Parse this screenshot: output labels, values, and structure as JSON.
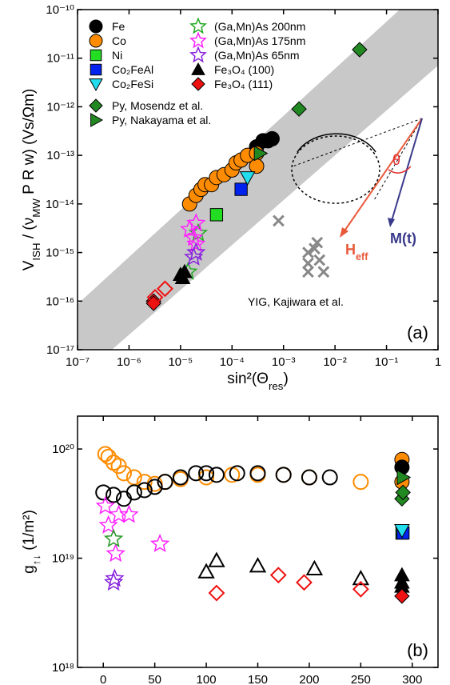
{
  "chart_data": [
    {
      "type": "scatter",
      "panel_label": "(a)",
      "annotation": "YIG, Kajiwara et al.",
      "xlabel": [
        {
          "text": "sin²(Θ"
        },
        {
          "text": "res",
          "sub": true
        },
        {
          "text": ")"
        }
      ],
      "ylabel": [
        {
          "text": "V"
        },
        {
          "text": "ISH",
          "sub": true
        },
        {
          "text": " / (ν"
        },
        {
          "text": "MW",
          "sub": true
        },
        {
          "text": " P R w) (Vs/Ωm)"
        }
      ],
      "xlog": true,
      "ylog": true,
      "legend": "upper left",
      "xlim": [
        1e-07,
        1
      ],
      "ylim": [
        1e-17,
        1e-10
      ],
      "xticks": [
        {
          "value": 1e-07,
          "label": "10⁻⁷"
        },
        {
          "value": 1e-06,
          "label": "10⁻⁶"
        },
        {
          "value": 1e-05,
          "label": "10⁻⁵"
        },
        {
          "value": 0.0001,
          "label": "10⁻⁴"
        },
        {
          "value": 0.001,
          "label": "10⁻³"
        },
        {
          "value": 0.01,
          "label": "10⁻²"
        },
        {
          "value": 0.1,
          "label": "10⁻¹"
        },
        {
          "value": 1,
          "label": "1"
        }
      ],
      "yticks": [
        {
          "value": 1e-17,
          "label": "10⁻¹⁷"
        },
        {
          "value": 1e-16,
          "label": "10⁻¹⁶"
        },
        {
          "value": 1e-15,
          "label": "10⁻¹⁵"
        },
        {
          "value": 1e-14,
          "label": "10⁻¹⁴"
        },
        {
          "value": 1e-13,
          "label": "10⁻¹³"
        },
        {
          "value": 1e-12,
          "label": "10⁻¹²"
        },
        {
          "value": 1e-11,
          "label": "10⁻¹¹"
        },
        {
          "value": 1e-10,
          "label": "10⁻¹⁰"
        }
      ],
      "inset": {
        "theta": "θ",
        "h_label": [
          {
            "text": "H"
          },
          {
            "text": "eff",
            "sub": true
          }
        ],
        "m_label": [
          {
            "text": "M"
          },
          {
            "text": "(t)"
          }
        ]
      },
      "series": [
        {
          "name": "Fe",
          "color": "#000000",
          "marker": "circle",
          "filled": true,
          "x": [
            0.0003,
            0.0004,
            0.0005,
            0.0006
          ],
          "values": [
            1.5e-13,
            2e-13,
            2e-13,
            2.2e-13
          ]
        },
        {
          "name": "Co",
          "color": "#ff8c00",
          "marker": "circle",
          "filled": true,
          "x": [
            1.5e-05,
            2e-05,
            2.5e-05,
            3e-05,
            4e-05,
            5e-05,
            7e-05,
            0.0001,
            0.00012,
            0.00015,
            0.0002,
            0.0003,
            0.0003
          ],
          "values": [
            1e-14,
            1.5e-14,
            2e-14,
            2.5e-14,
            2.5e-14,
            3.5e-14,
            4e-14,
            5e-14,
            7e-14,
            8e-14,
            1e-13,
            1.1e-13,
            6e-14
          ]
        },
        {
          "name": "Ni",
          "color": "#22dd22",
          "marker": "square",
          "filled": true,
          "x": [
            5e-05
          ],
          "values": [
            6e-15
          ]
        },
        {
          "name": "Co₂FeAl",
          "color": "#0022ee",
          "marker": "square",
          "filled": true,
          "x": [
            0.00015
          ],
          "values": [
            2e-14
          ]
        },
        {
          "name": "Co₂FeSi",
          "color": "#22ddee",
          "marker": "triangle-down",
          "filled": true,
          "x": [
            0.0002
          ],
          "values": [
            3.5e-14
          ]
        },
        {
          "name": "(Ga,Mn)As 200nm",
          "color": "#22aa22",
          "marker": "star",
          "filled": false,
          "x": [
            2.2e-05,
            1.4e-05
          ],
          "values": [
            2.5e-15,
            4e-16
          ]
        },
        {
          "name": "(Ga,Mn)As 175nm",
          "color": "#ff22ff",
          "marker": "star",
          "filled": false,
          "x": [
            1.5e-05,
            2e-05,
            1.8e-05,
            2e-05
          ],
          "values": [
            3e-15,
            4e-15,
            2e-15,
            1.5e-15
          ]
        },
        {
          "name": "(Ga,Mn)As 65nm",
          "color": "#8822dd",
          "marker": "star",
          "filled": false,
          "x": [
            2e-05,
            1.8e-05
          ],
          "values": [
            1e-15,
            8e-16
          ]
        },
        {
          "name": "Fe₃O₄ (100)",
          "color": "#000000",
          "marker": "triangle",
          "filled": true,
          "x": [
            1e-05,
            1.2e-05,
            1.1e-05
          ],
          "values": [
            3.5e-16,
            4e-16,
            3e-16
          ]
        },
        {
          "name": "Fe₃O₄ (111)",
          "color": "#ee1111",
          "marker": "diamond",
          "filled": true,
          "x": [
            3e-06,
            3e-06
          ],
          "values": [
            1e-16,
            9e-17
          ]
        },
        {
          "name": "Py, Mosendz et al.",
          "color": "#228822",
          "marker": "diamond",
          "filled": true,
          "x": [
            0.03,
            0.002
          ],
          "values": [
            1.5e-11,
            9e-13
          ]
        },
        {
          "name": "Py, Nakayama et al.",
          "color": "#228822",
          "marker": "triangle-right",
          "filled": true,
          "x": [
            0.00035
          ],
          "values": [
            1.1e-13
          ]
        },
        {
          "color": "#ee1111",
          "marker": "diamond",
          "filled": false,
          "x": [
            3.2e-06,
            5e-06
          ],
          "values": [
            1.2e-16,
            1.8e-16
          ]
        },
        {
          "color": "#888888",
          "marker": "cross",
          "filled": false,
          "x": [
            0.0008,
            0.003,
            0.0045,
            0.003,
            0.005,
            0.003,
            0.006,
            0.004
          ],
          "values": [
            4.5e-15,
            1e-15,
            1.6e-15,
            6e-16,
            7e-16,
            4e-16,
            4e-16,
            1.2e-15
          ]
        }
      ]
    },
    {
      "type": "scatter",
      "panel_label": "(b)",
      "xlabel": [
        {
          "text": "T (K)"
        }
      ],
      "ylabel": [
        {
          "text": "g"
        },
        {
          "text": "↑↓",
          "sub": true
        },
        {
          "text": " (1/m²)"
        }
      ],
      "xlog": false,
      "ylog": true,
      "xlim": [
        -25,
        325
      ],
      "ylim": [
        1e+18,
        2e+20
      ],
      "xticks": [
        0,
        50,
        100,
        150,
        200,
        250,
        300
      ],
      "yticks": [
        {
          "value": 1e+18,
          "label": "10¹⁸"
        },
        {
          "value": 1e+19,
          "label": "10¹⁹"
        },
        {
          "value": 1e+20,
          "label": "10²⁰"
        }
      ],
      "series": [
        {
          "color": "#ff8c00",
          "marker": "circle",
          "filled": false,
          "x": [
            2,
            5,
            10,
            15,
            20,
            30,
            40,
            50,
            60,
            75,
            100,
            125,
            150,
            175,
            200,
            250
          ],
          "values": [
            9e+19,
            8.5e+19,
            7.5e+19,
            7e+19,
            6e+19,
            5.5e+19,
            5e+19,
            4.8e+19,
            5e+19,
            5.3e+19,
            5.5e+19,
            5.8e+19,
            5.8e+19,
            5.8e+19,
            5.5e+19,
            5e+19
          ]
        },
        {
          "color": "#000000",
          "marker": "circle",
          "filled": false,
          "x": [
            0,
            10,
            20,
            30,
            40,
            50,
            60,
            75,
            90,
            100,
            110,
            130,
            150,
            175,
            200,
            220
          ],
          "values": [
            4e+19,
            3.8e+19,
            3.5e+19,
            4e+19,
            4.2e+19,
            4.5e+19,
            5e+19,
            5.5e+19,
            6e+19,
            6e+19,
            5.8e+19,
            6e+19,
            6e+19,
            5.8e+19,
            5.5e+19,
            5.5e+19
          ]
        },
        {
          "color": "#000000",
          "marker": "triangle",
          "filled": false,
          "x": [
            100,
            110,
            150,
            205,
            250
          ],
          "values": [
            7.5e+18,
            9.5e+18,
            8.5e+18,
            8e+18,
            6.5e+18
          ]
        },
        {
          "color": "#ee1111",
          "marker": "diamond",
          "filled": false,
          "x": [
            110,
            170,
            195,
            250
          ],
          "values": [
            4.8e+18,
            7e+18,
            6e+18,
            5.2e+18
          ]
        },
        {
          "color": "#ff22ff",
          "marker": "star",
          "filled": false,
          "x": [
            2,
            5,
            10,
            12,
            15,
            25,
            55
          ],
          "values": [
            3e+19,
            2e+19,
            1.5e+19,
            1.1e+19,
            2.5e+19,
            2.5e+19,
            1.35e+19
          ]
        },
        {
          "color": "#22aa22",
          "marker": "star",
          "filled": false,
          "x": [
            10
          ],
          "values": [
            1.5e+19
          ]
        },
        {
          "color": "#8822dd",
          "marker": "star",
          "filled": false,
          "x": [
            10,
            11
          ],
          "values": [
            6e+18,
            6.5e+18
          ]
        },
        {
          "color": "#ff8c00",
          "marker": "circle",
          "filled": true,
          "x": [
            290,
            290
          ],
          "values": [
            8e+19,
            5e+19
          ]
        },
        {
          "color": "#000000",
          "marker": "circle",
          "filled": true,
          "x": [
            290
          ],
          "values": [
            6.8e+19
          ]
        },
        {
          "color": "#228822",
          "marker": "triangle-right",
          "filled": true,
          "x": [
            291
          ],
          "values": [
            5.5e+19
          ]
        },
        {
          "color": "#228822",
          "marker": "diamond",
          "filled": true,
          "x": [
            290,
            291
          ],
          "values": [
            3.5e+19,
            4e+19
          ]
        },
        {
          "color": "#22dd22",
          "marker": "square",
          "filled": true,
          "x": [
            290
          ],
          "values": [
            1.7e+19
          ]
        },
        {
          "color": "#0022ee",
          "marker": "square",
          "filled": true,
          "x": [
            291
          ],
          "values": [
            1.7e+19
          ]
        },
        {
          "color": "#22ddee",
          "marker": "triangle-down",
          "filled": true,
          "x": [
            290
          ],
          "values": [
            1.8e+19
          ]
        },
        {
          "color": "#000000",
          "marker": "triangle",
          "filled": true,
          "x": [
            290,
            290,
            290
          ],
          "values": [
            7e+18,
            6e+18,
            5.5e+18
          ]
        },
        {
          "color": "#ee1111",
          "marker": "diamond",
          "filled": true,
          "x": [
            290
          ],
          "values": [
            4.5e+18
          ]
        }
      ]
    }
  ]
}
